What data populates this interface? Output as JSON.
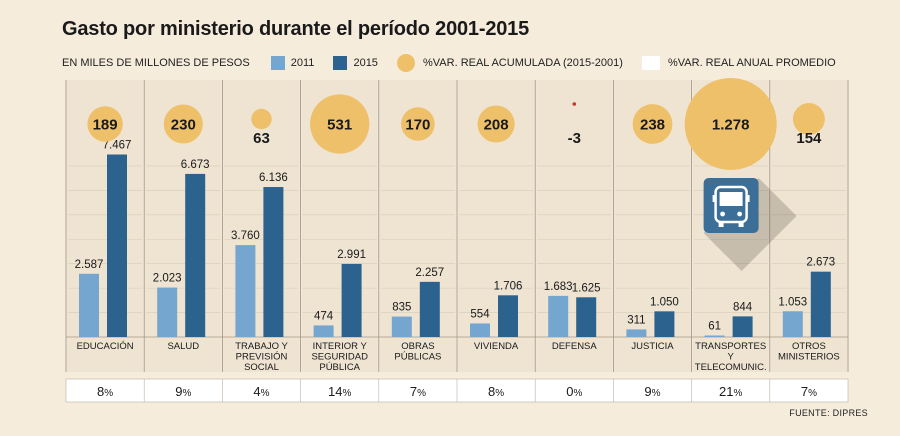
{
  "header": {
    "title": "Gasto por ministerio durante el período 2001-2015",
    "units": "EN MILES DE MILLONES DE PESOS",
    "legend_2011": "2011",
    "legend_2015": "2015",
    "legend_circle": "%VAR. REAL ACUMULADA (2015-2001)",
    "legend_box": "%VAR. REAL ANUAL PROMEDIO"
  },
  "footer": {
    "source": "FUENTE: DIPRES"
  },
  "colors": {
    "bar_2011": "#74a6cf",
    "bar_2015": "#2c628e",
    "circle": "#efc06a",
    "panel": "#efe4d2",
    "background": "#f6ecdc",
    "dot": "#c0392b"
  },
  "chart_data": {
    "type": "bar",
    "title": "Gasto por ministerio durante el período 2001-2015",
    "ylabel": "Miles de millones de pesos",
    "ylim": [
      0,
      8000
    ],
    "grid": true,
    "categories": [
      [
        "EDUCACIÓN"
      ],
      [
        "SALUD"
      ],
      [
        "TRABAJO Y",
        "PREVISIÓN",
        "SOCIAL"
      ],
      [
        "INTERIOR Y",
        "SEGURIDAD",
        "PÚBLICA"
      ],
      [
        "OBRAS",
        "PÚBLICAS"
      ],
      [
        "VIVIENDA"
      ],
      [
        "DEFENSA"
      ],
      [
        "JUSTICIA"
      ],
      [
        "TRANSPORTES",
        "Y",
        "TELECOMUNIC."
      ],
      [
        "OTROS",
        "MINISTERIOS"
      ]
    ],
    "series": [
      {
        "name": "2011",
        "values": [
          2587,
          2023,
          3760,
          474,
          835,
          554,
          1683,
          311,
          61,
          1053
        ],
        "labels": [
          "2.587",
          "2.023",
          "3.760",
          "474",
          "835",
          "554",
          "1.683",
          "311",
          "61",
          "1.053"
        ]
      },
      {
        "name": "2015",
        "values": [
          7467,
          6673,
          6136,
          2991,
          2257,
          1706,
          1625,
          1050,
          844,
          2673
        ],
        "labels": [
          "7.467",
          "6.673",
          "6.136",
          "2.991",
          "2.257",
          "1.706",
          "1.625",
          "1.050",
          "844",
          "2.673"
        ]
      }
    ],
    "cumulative_var": {
      "name": "%VAR. REAL ACUMULADA (2015-2001)",
      "values": [
        189,
        230,
        63,
        531,
        170,
        208,
        -3,
        238,
        1278,
        154
      ],
      "labels": [
        "189",
        "230",
        "63",
        "531",
        "170",
        "208",
        "-3",
        "238",
        "1.278",
        "154"
      ]
    },
    "annual_avg_var": {
      "name": "%VAR. REAL ANUAL PROMEDIO",
      "values": [
        8,
        9,
        4,
        14,
        7,
        8,
        0,
        9,
        21,
        7
      ],
      "unit": "%"
    }
  }
}
